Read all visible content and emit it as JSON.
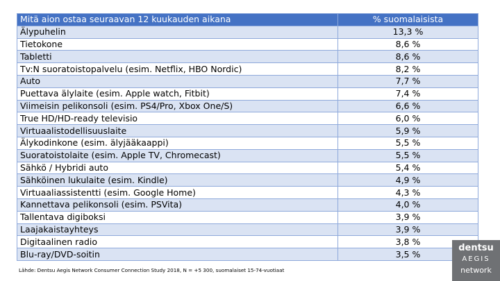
{
  "chart_data": {
    "type": "table",
    "columns": [
      "Mitä aion ostaa seuraavan 12 kuukauden aikana",
      "% suomalaisista"
    ],
    "rows": [
      {
        "item": "Älypuhelin",
        "value": "13,3 %"
      },
      {
        "item": "Tietokone",
        "value": "8,6 %"
      },
      {
        "item": "Tabletti",
        "value": "8,6 %"
      },
      {
        "item": "Tv:N suoratoistopalvelu (esim. Netflix, HBO Nordic)",
        "value": "8,2 %"
      },
      {
        "item": "Auto",
        "value": "7,7 %"
      },
      {
        "item": "Puettava älylaite (esim. Apple watch, Fitbit)",
        "value": "7,4 %"
      },
      {
        "item": "Viimeisin pelikonsoli (esim. PS4/Pro, Xbox One/S)",
        "value": "6,6 %"
      },
      {
        "item": "True HD/HD-ready televisio",
        "value": "6,0 %"
      },
      {
        "item": "Virtuaalistodellisuuslaite",
        "value": "5,9 %"
      },
      {
        "item": "Älykodinkone (esim. älyjääkaappi)",
        "value": "5,5 %"
      },
      {
        "item": "Suoratoistolaite (esim. Apple TV, Chromecast)",
        "value": "5,5 %"
      },
      {
        "item": "Sähkö / Hybridi auto",
        "value": "5,4 %"
      },
      {
        "item": "Sähköinen lukulaite (esim. Kindle)",
        "value": "4,9 %"
      },
      {
        "item": "Virtuaaliassistentti (esim. Google Home)",
        "value": "4,3 %"
      },
      {
        "item": "Kannettava pelikonsoli (esim. PSVita)",
        "value": "4,0 %"
      },
      {
        "item": "Tallentava digiboksi",
        "value": "3,9 %"
      },
      {
        "item": "Laajakaistayhteys",
        "value": "3,9 %"
      },
      {
        "item": "Digitaalinen radio",
        "value": "3,8 %"
      },
      {
        "item": "Blu-ray/DVD-soitin",
        "value": "3,5 %"
      }
    ]
  },
  "source_note": "Lähde: Dentsu Aegis Network Consumer Connection Study 2018, N = +5 300, suomalaiset 15-74-vuotiaat",
  "logo": {
    "line1": "dentsu",
    "line2": "AEGIS",
    "line3": "network"
  },
  "colors": {
    "header_bg": "#4472c4",
    "band_bg": "#dae3f3",
    "border": "#8ea9db",
    "logo_bg": "#6f7174"
  }
}
